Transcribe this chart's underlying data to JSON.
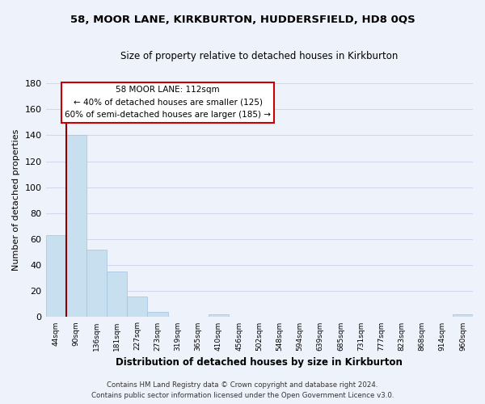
{
  "title_line1": "58, MOOR LANE, KIRKBURTON, HUDDERSFIELD, HD8 0QS",
  "title_line2": "Size of property relative to detached houses in Kirkburton",
  "xlabel": "Distribution of detached houses by size in Kirkburton",
  "ylabel": "Number of detached properties",
  "bar_labels": [
    "44sqm",
    "90sqm",
    "136sqm",
    "181sqm",
    "227sqm",
    "273sqm",
    "319sqm",
    "365sqm",
    "410sqm",
    "456sqm",
    "502sqm",
    "548sqm",
    "594sqm",
    "639sqm",
    "685sqm",
    "731sqm",
    "777sqm",
    "823sqm",
    "868sqm",
    "914sqm",
    "960sqm"
  ],
  "bar_values": [
    63,
    140,
    52,
    35,
    16,
    4,
    0,
    0,
    2,
    0,
    0,
    0,
    0,
    0,
    0,
    0,
    0,
    0,
    0,
    0,
    2
  ],
  "bar_color": "#c8dff0",
  "bar_edge_color": "#a0c4e0",
  "vline_color": "#8b0000",
  "ylim": [
    0,
    180
  ],
  "yticks": [
    0,
    20,
    40,
    60,
    80,
    100,
    120,
    140,
    160,
    180
  ],
  "annotation_title": "58 MOOR LANE: 112sqm",
  "annotation_line1": "← 40% of detached houses are smaller (125)",
  "annotation_line2": "60% of semi-detached houses are larger (185) →",
  "footer_line1": "Contains HM Land Registry data © Crown copyright and database right 2024.",
  "footer_line2": "Contains public sector information licensed under the Open Government Licence v3.0.",
  "background_color": "#eef2fa",
  "grid_color": "#d0d8ee"
}
